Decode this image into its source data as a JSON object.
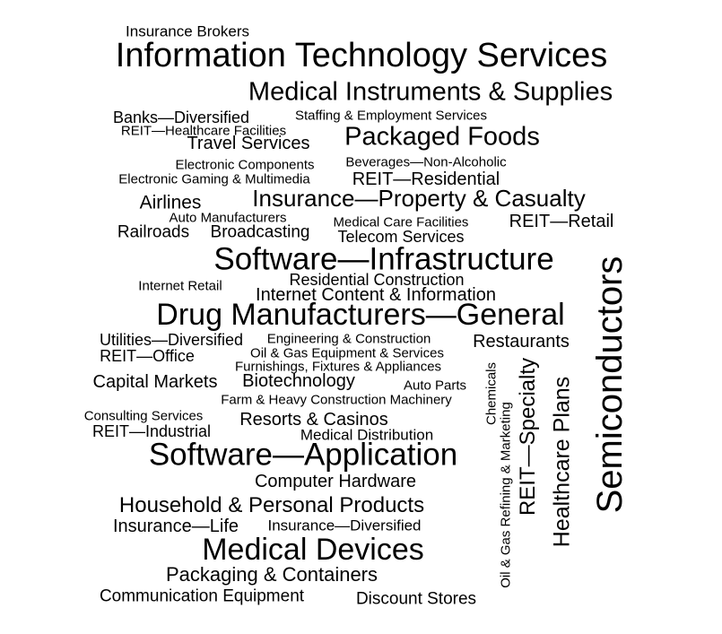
{
  "word_cloud": {
    "words": [
      "Insurance Brokers",
      "Information Technology Services",
      "Medical Instruments & Supplies",
      "Banks—Diversified",
      "Staffing & Employment Services",
      "REIT—Healthcare Facilities",
      "Travel Services",
      "Packaged Foods",
      "Electronic Components",
      "Beverages—Non-Alcoholic",
      "Electronic Gaming & Multimedia",
      "REIT—Residential",
      "Airlines",
      "Insurance—Property & Casualty",
      "Auto Manufacturers",
      "Medical Care Facilities",
      "REIT—Retail",
      "Railroads",
      "Broadcasting",
      "Telecom Services",
      "Software—Infrastructure",
      "Residential Construction",
      "Internet Retail",
      "Internet Content & Information",
      "Drug Manufacturers—General",
      "Utilities—Diversified",
      "Engineering & Construction",
      "Restaurants",
      "Oil & Gas Equipment & Services",
      "REIT—Office",
      "Furnishings, Fixtures & Appliances",
      "Capital Markets",
      "Biotechnology",
      "Auto Parts",
      "Farm & Heavy Construction Machinery",
      "Consulting Services",
      "Resorts & Casinos",
      "REIT—Industrial",
      "Medical Distribution",
      "Software—Application",
      "Computer Hardware",
      "Household & Personal Products",
      "Insurance—Life",
      "Insurance—Diversified",
      "Medical Devices",
      "Packaging & Containers",
      "Communication Equipment",
      "Discount Stores",
      "Chemicals",
      "Oil & Gas Refining & Marketing",
      "REIT—Specialty",
      "Healthcare Plans",
      "Semiconductors"
    ],
    "text_color": "#000000",
    "background_color": "#ffffff"
  }
}
